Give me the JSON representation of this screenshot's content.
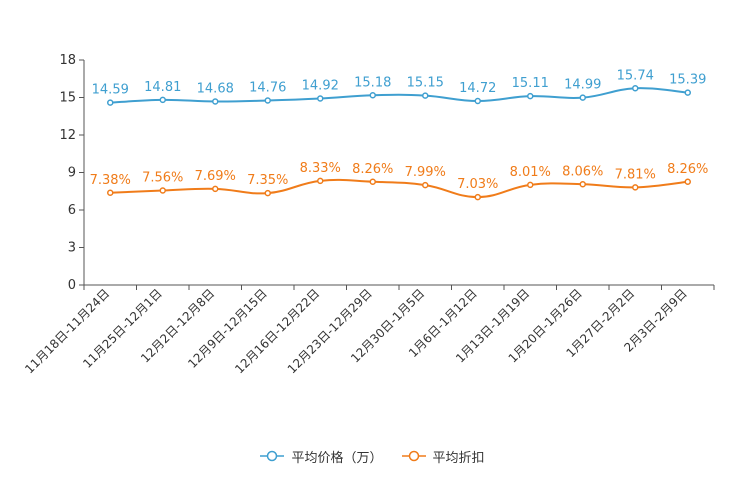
{
  "colors": {
    "price": "#3f9fd0",
    "discount": "#f07c1a",
    "axis": "#555555",
    "text": "#333333"
  },
  "chart_data": {
    "type": "line",
    "title": "",
    "xlabel": "",
    "ylabel": "",
    "ylim": [
      0,
      18
    ],
    "yticks": [
      0,
      3,
      6,
      9,
      12,
      15,
      18
    ],
    "grid": false,
    "legend_position": "bottom-center",
    "categories": [
      "11月18日-11月24日",
      "11月25日-12月1日",
      "12月2日-12月8日",
      "12月9日-12月15日",
      "12月16日-12月22日",
      "12月23日-12月29日",
      "12月30日-1月5日",
      "1月6日-1月12日",
      "1月13日-1月19日",
      "1月20日-1月26日",
      "1月27日-2月2日",
      "2月3日-2月9日"
    ],
    "series": [
      {
        "key": "price",
        "name": "平均价格（万）",
        "values": [
          14.59,
          14.81,
          14.68,
          14.76,
          14.92,
          15.18,
          15.15,
          14.72,
          15.11,
          14.99,
          15.74,
          15.39
        ],
        "labels": [
          "14.59",
          "14.81",
          "14.68",
          "14.76",
          "14.92",
          "15.18",
          "15.15",
          "14.72",
          "15.11",
          "14.99",
          "15.74",
          "15.39"
        ]
      },
      {
        "key": "discount",
        "name": "平均折扣",
        "values": [
          7.38,
          7.56,
          7.69,
          7.35,
          8.33,
          8.26,
          7.99,
          7.03,
          8.01,
          8.06,
          7.81,
          8.26
        ],
        "labels": [
          "7.38%",
          "7.56%",
          "7.69%",
          "7.35%",
          "8.33%",
          "8.26%",
          "7.99%",
          "7.03%",
          "8.01%",
          "8.06%",
          "7.81%",
          "8.26%"
        ]
      }
    ]
  }
}
